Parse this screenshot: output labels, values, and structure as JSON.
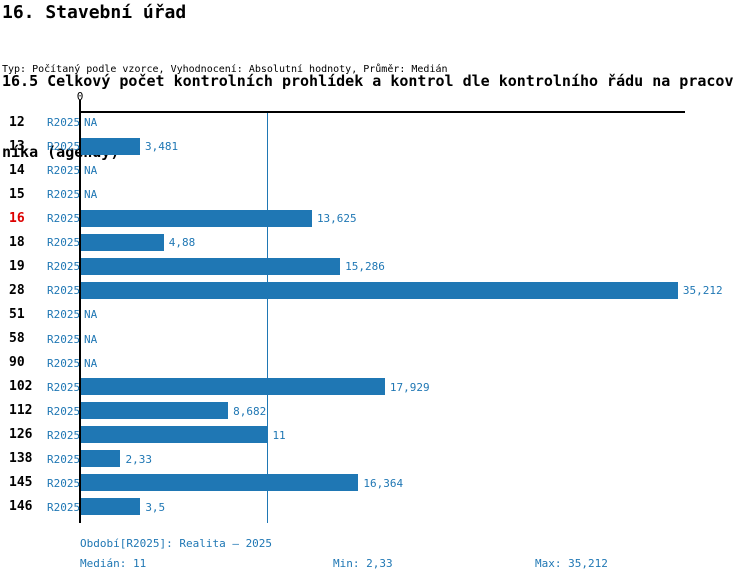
{
  "header": {
    "title": "16. Stavební úřad",
    "subtitle_lines": [
      "16.5 Celkový počet kontrolních prohlídek a kontrol dle kontrolního řádu na pracov",
      "níka (agendy)"
    ],
    "meta": "Typ: Počítaný podle vzorce, Vyhodnocení: Absolutní hodnoty, Průměr: Medián"
  },
  "colors": {
    "bar_blue": "#1F77B4",
    "text_blue": "#1F77B4",
    "highlight_red": "#DD0000",
    "axis_black": "#000000"
  },
  "chart_data": {
    "type": "bar",
    "orientation": "horizontal",
    "title": "16.5 Celkový počet kontrolních prohlídek a kontrol dle kontrolního řádu na pracovníka (agendy)",
    "categories": [
      "12",
      "13",
      "14",
      "15",
      "16",
      "18",
      "19",
      "28",
      "51",
      "58",
      "90",
      "102",
      "112",
      "126",
      "138",
      "145",
      "146"
    ],
    "series": [
      {
        "name": "R2025",
        "values": [
          null,
          3.481,
          null,
          null,
          13.625,
          4.88,
          15.286,
          35.212,
          null,
          null,
          null,
          17.929,
          8.682,
          11,
          2.33,
          16.364,
          3.5
        ]
      }
    ],
    "value_labels": [
      "NA",
      "3,481",
      "NA",
      "NA",
      "13,625",
      "4,88",
      "15,286",
      "35,212",
      "NA",
      "NA",
      "NA",
      "17,929",
      "8,682",
      "11",
      "2,33",
      "16,364",
      "3,5"
    ],
    "null_label": "NA",
    "highlighted_category": "16",
    "axis": {
      "zero_label": "0",
      "min": 0,
      "max": 35.7,
      "median_line_at": 11,
      "grid": "median-only"
    },
    "stats": {
      "median": 11,
      "min": 2.33,
      "max": 35.212
    },
    "legend_position": "none"
  },
  "footer": {
    "period": "Období[R2025]: Realita – 2025",
    "median": "Medián: 11",
    "min": "Min: 2,33",
    "max": "Max: 35,212"
  }
}
